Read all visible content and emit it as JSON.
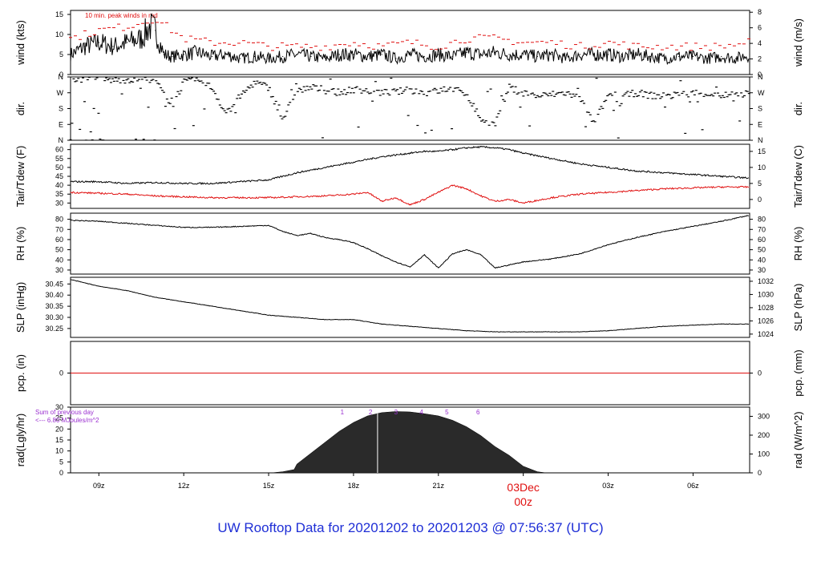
{
  "footer": {
    "title": "UW Rooftop Data for 20201202  to  20201203 @ 07:56:37  (UTC)"
  },
  "colors": {
    "series": "#000000",
    "red": "#e01010",
    "purple": "#9b30d0",
    "title_blue": "#1f2fd6",
    "rad_fill": "#2a2a2a"
  },
  "chart_data": [
    {
      "type": "line",
      "panel": "wind",
      "ylabel_left": "wind (kts)",
      "ylabel_right": "wind (m/s)",
      "yticks_left": [
        0,
        5,
        10,
        15
      ],
      "yticks_right": [
        0,
        2,
        4,
        6,
        8
      ],
      "ylim": [
        0,
        16
      ],
      "annotation": "10 min. peak winds in red",
      "series": [
        {
          "role": "sustained",
          "color": "#000000",
          "x": [
            8,
            8.5,
            9,
            9.5,
            10,
            10.5,
            10.8,
            11,
            11.3,
            11.6,
            12,
            12.5,
            13,
            13.5,
            14,
            14.5,
            15,
            15.5,
            16,
            16.5,
            17,
            17.5,
            18,
            18.5,
            19,
            19.5,
            20,
            20.5,
            21,
            21.5,
            22,
            22.5,
            23,
            23.5,
            24,
            24.5,
            25,
            25.5,
            26,
            26.5,
            27,
            27.5,
            28,
            28.5,
            29,
            29.5,
            30,
            30.5,
            31,
            31.5,
            32
          ],
          "y": [
            5,
            7,
            8,
            7,
            8,
            9,
            12,
            11,
            5,
            4.5,
            5,
            5.5,
            4.5,
            5,
            4,
            4.5,
            4,
            4.5,
            5,
            4.5,
            4,
            5,
            5,
            4.5,
            5,
            4,
            5,
            4.5,
            5,
            4.5,
            5.5,
            5,
            5.5,
            5,
            5,
            4.5,
            5,
            4,
            5,
            5,
            5,
            4.5,
            5,
            4.5,
            4,
            4.5,
            4.5,
            4,
            4.5,
            4,
            5
          ]
        },
        {
          "role": "10-min peak",
          "color": "#e01010",
          "x": [
            8,
            9,
            10,
            10.5,
            11,
            12,
            13,
            14,
            15,
            16,
            17,
            18,
            19,
            20,
            21,
            22,
            23,
            24,
            25,
            26,
            27,
            28,
            29,
            30,
            31,
            32
          ],
          "y": [
            9,
            11,
            12,
            13,
            14,
            9,
            8,
            8,
            7,
            7,
            7,
            8,
            7,
            8,
            7,
            9,
            9,
            8,
            8,
            7,
            8,
            7,
            7,
            7,
            7,
            8
          ]
        }
      ]
    },
    {
      "type": "scatter",
      "panel": "dir",
      "ylabel_left": "dir.",
      "ylabel_right": "dir.",
      "ytick_labels": [
        "N",
        "W",
        "S",
        "E",
        "N"
      ],
      "ylim": [
        0,
        360
      ],
      "series": [
        {
          "color": "#000000",
          "x": [
            8,
            8.5,
            9,
            9.5,
            10,
            10.5,
            11,
            11.3,
            11.6,
            12,
            12.5,
            13,
            13.5,
            14,
            14.5,
            15,
            15.5,
            16,
            16.5,
            17,
            17.5,
            18,
            18.5,
            19,
            19.5,
            20,
            20.5,
            21,
            21.5,
            22,
            22.5,
            23,
            23.5,
            24,
            24.5,
            25,
            25.5,
            26,
            26.5,
            27,
            27.5,
            28,
            28.5,
            29,
            29.5,
            30,
            30.5,
            31,
            31.5,
            32
          ],
          "y": [
            350,
            345,
            350,
            340,
            345,
            350,
            345,
            260,
            200,
            330,
            340,
            300,
            150,
            250,
            330,
            300,
            120,
            280,
            300,
            285,
            270,
            290,
            280,
            270,
            275,
            285,
            270,
            280,
            290,
            265,
            120,
            90,
            300,
            270,
            250,
            260,
            270,
            240,
            90,
            260,
            250,
            270,
            255,
            250,
            260,
            270,
            265,
            255,
            260,
            265
          ]
        }
      ]
    },
    {
      "type": "line",
      "panel": "temp",
      "ylabel_left": "Tair/Tdew (F)",
      "ylabel_right": "Tair/Tdew (C)",
      "yticks_left": [
        30,
        35,
        40,
        45,
        50,
        55,
        60
      ],
      "yticks_right": [
        0,
        5,
        10,
        15
      ],
      "ylim": [
        27,
        63
      ],
      "series": [
        {
          "name_hidden": "Tair",
          "color": "#000000",
          "x": [
            8,
            9,
            10,
            11,
            12,
            13,
            14,
            15,
            16,
            17,
            18,
            19,
            20,
            20.5,
            21,
            21.5,
            22,
            22.5,
            23,
            23.5,
            24,
            25,
            26,
            27,
            28,
            29,
            30,
            31,
            32
          ],
          "y": [
            42,
            42,
            41,
            41.5,
            41,
            41,
            42,
            43,
            47,
            50,
            53,
            56,
            58,
            59,
            59,
            60,
            61,
            61.5,
            61,
            60,
            58,
            55,
            52,
            50,
            48,
            47,
            46,
            45,
            44
          ]
        },
        {
          "name_hidden": "Tdew",
          "color": "#e01010",
          "x": [
            8,
            9,
            10,
            11,
            12,
            13,
            14,
            15,
            16,
            17,
            18,
            18.5,
            19,
            19.5,
            20,
            20.5,
            21,
            21.5,
            22,
            22.5,
            23,
            23.5,
            24,
            25,
            26,
            27,
            28,
            29,
            30,
            31,
            32
          ],
          "y": [
            36,
            35.5,
            35,
            34,
            33.5,
            33,
            33,
            33,
            33.5,
            34,
            35,
            36,
            31,
            33,
            29,
            32,
            36,
            40,
            38,
            34,
            31,
            32,
            30,
            33,
            35,
            36,
            37,
            38,
            38.5,
            39,
            39
          ]
        }
      ]
    },
    {
      "type": "line",
      "panel": "rh",
      "ylabel_left": "RH (%)",
      "ylabel_right": "RH (%)",
      "yticks": [
        30,
        40,
        50,
        60,
        70,
        80
      ],
      "ylim": [
        26,
        86
      ],
      "series": [
        {
          "color": "#000000",
          "x": [
            8,
            9,
            10,
            11,
            12,
            13,
            14,
            15,
            15.5,
            16,
            16.5,
            17,
            17.5,
            18,
            18.5,
            19,
            19.5,
            20,
            20.5,
            21,
            21.5,
            22,
            22.5,
            23,
            24,
            25,
            26,
            27,
            28,
            29,
            30,
            31,
            32
          ],
          "y": [
            79,
            78,
            76,
            74,
            72,
            72,
            73,
            74,
            68,
            64,
            66,
            62,
            60,
            57,
            51,
            44,
            38,
            33,
            45,
            32,
            46,
            50,
            45,
            32,
            38,
            41,
            46,
            55,
            62,
            68,
            73,
            78,
            84
          ]
        }
      ]
    },
    {
      "type": "line",
      "panel": "slp",
      "ylabel_left": "SLP (inHg)",
      "ylabel_right": "SLP (hPa)",
      "yticks_left": [
        30.25,
        30.3,
        30.35,
        30.4,
        30.45
      ],
      "yticks_right": [
        1024,
        1026,
        1028,
        1030,
        1032
      ],
      "ylim": [
        30.21,
        30.48
      ],
      "series": [
        {
          "color": "#000000",
          "x": [
            8,
            9,
            10,
            11,
            12,
            13,
            14,
            15,
            16,
            17,
            18,
            19,
            20,
            21,
            22,
            23,
            24,
            25,
            26,
            27,
            28,
            29,
            30,
            31,
            32
          ],
          "y": [
            30.47,
            30.44,
            30.42,
            30.39,
            30.37,
            30.35,
            30.33,
            30.31,
            30.3,
            30.29,
            30.29,
            30.27,
            30.26,
            30.25,
            30.24,
            30.235,
            30.235,
            30.235,
            30.235,
            30.24,
            30.25,
            30.26,
            30.265,
            30.27,
            30.27
          ]
        }
      ]
    },
    {
      "type": "line",
      "panel": "pcp",
      "ylabel_left": "pcp. (in)",
      "ylabel_right": "pcp. (mm)",
      "yticks_left": [
        0
      ],
      "yticks_right": [
        0
      ],
      "series": [
        {
          "color": "#e01010",
          "x": [
            8,
            32
          ],
          "y": [
            0,
            0
          ]
        }
      ]
    },
    {
      "type": "area",
      "panel": "rad",
      "ylabel_left": "rad(Lgly/hr)",
      "ylabel_right": "rad (W/m^2)",
      "yticks_left": [
        0,
        5,
        10,
        15,
        20,
        25,
        30
      ],
      "yticks_right": [
        0,
        100,
        200,
        300
      ],
      "ylim": [
        0,
        30
      ],
      "annotation_lines": [
        "Sum of previous day",
        "<--- 6.80 MJoules/m^2"
      ],
      "hour_markers": [
        "1",
        "2",
        "3",
        "4",
        "5",
        "6"
      ],
      "hour_marker_x": [
        17.6,
        18.6,
        19.5,
        20.4,
        21.3,
        22.4
      ],
      "series": [
        {
          "color": "#2a2a2a",
          "x": [
            15.1,
            15.5,
            15.9,
            16.0,
            16.5,
            17,
            17.5,
            18,
            18.5,
            19,
            19.5,
            20,
            20.5,
            21,
            21.5,
            22,
            22.5,
            23,
            23.5,
            23.8,
            24.0,
            24.3,
            24.5,
            24.8
          ],
          "y": [
            0,
            0.5,
            1.5,
            4,
            9,
            14,
            19,
            23,
            26,
            27.5,
            28,
            27.8,
            27,
            26,
            24,
            21,
            17,
            12,
            8,
            5,
            3,
            1.5,
            0.5,
            0
          ]
        }
      ]
    }
  ],
  "x_axis": {
    "ticks": [
      "09z",
      "12z",
      "15z",
      "18z",
      "21z",
      "00z",
      "03z",
      "06z"
    ],
    "tick_x": [
      9,
      12,
      15,
      18,
      21,
      24,
      27,
      30
    ],
    "date_marker_day": "03Dec",
    "date_marker_hour": "00z",
    "range": [
      8,
      32
    ]
  }
}
